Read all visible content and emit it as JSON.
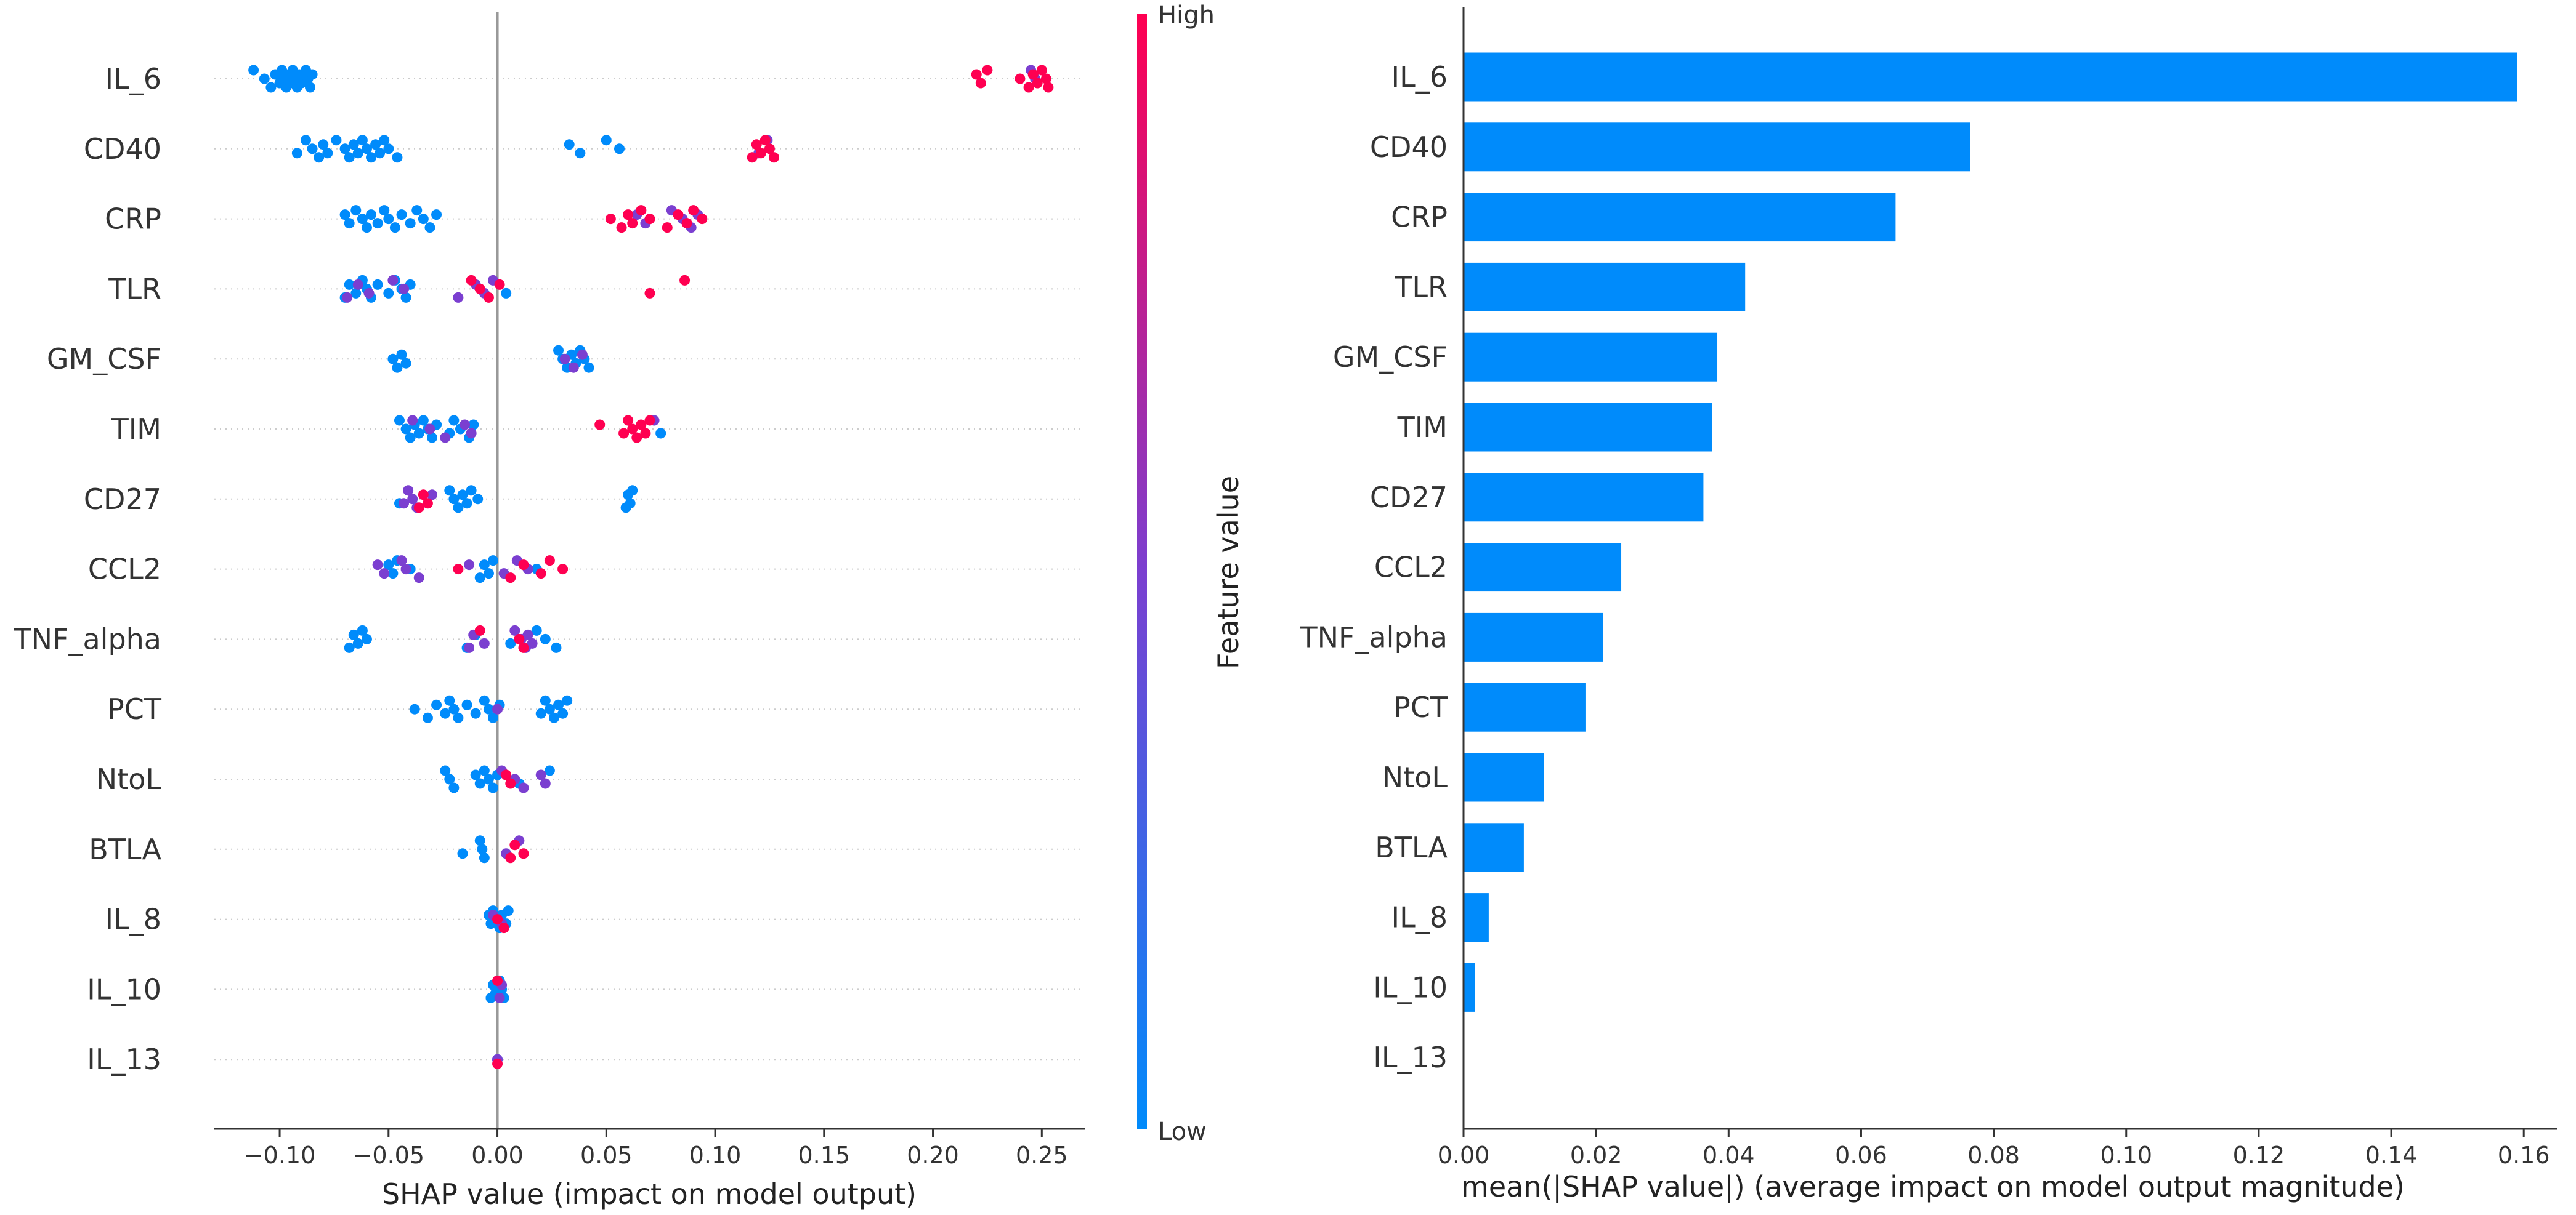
{
  "chart_data": [
    {
      "type": "scatter",
      "subtype": "shap-beeswarm",
      "xlabel": "SHAP value (impact on model output)",
      "xlim": [
        -0.13,
        0.27
      ],
      "xticks": [
        "−0.10",
        "−0.05",
        "0.00",
        "0.05",
        "0.10",
        "0.15",
        "0.20",
        "0.25"
      ],
      "xtick_values": [
        -0.1,
        -0.05,
        0.0,
        0.05,
        0.1,
        0.15,
        0.2,
        0.25
      ],
      "colorbar": {
        "label": "Feature value",
        "high": "High",
        "low": "Low",
        "low_color": "#008bfb",
        "high_color": "#ff0051"
      },
      "features": [
        "IL_6",
        "CD40",
        "CRP",
        "TLR",
        "GM_CSF",
        "TIM",
        "CD27",
        "CCL2",
        "TNF_alpha",
        "PCT",
        "NtoL",
        "BTLA",
        "IL_8",
        "IL_10",
        "IL_13"
      ],
      "points": [
        {
          "feature": "IL_6",
          "low_x": [
            -0.112,
            -0.107,
            -0.104,
            -0.102,
            -0.1,
            -0.099,
            -0.098,
            -0.097,
            -0.096,
            -0.095,
            -0.094,
            -0.093,
            -0.092,
            -0.091,
            -0.09,
            -0.088,
            -0.087,
            -0.086,
            -0.085
          ],
          "high_x": [
            0.22,
            0.222,
            0.225,
            0.24,
            0.244,
            0.246,
            0.248,
            0.25,
            0.252,
            0.253
          ],
          "mid_x": [
            0.245,
            0.247
          ]
        },
        {
          "feature": "CD40",
          "low_x": [
            -0.092,
            -0.088,
            -0.085,
            -0.082,
            -0.08,
            -0.078,
            -0.074,
            -0.07,
            -0.068,
            -0.066,
            -0.064,
            -0.062,
            -0.06,
            -0.058,
            -0.056,
            -0.054,
            -0.052,
            -0.05,
            -0.046,
            0.033,
            0.038,
            0.05,
            0.056
          ],
          "high_x": [
            0.117,
            0.119,
            0.121,
            0.123,
            0.125,
            0.127
          ],
          "mid_x": [
            0.12,
            0.124
          ]
        },
        {
          "feature": "CRP",
          "low_x": [
            -0.07,
            -0.068,
            -0.065,
            -0.062,
            -0.06,
            -0.058,
            -0.055,
            -0.052,
            -0.05,
            -0.047,
            -0.044,
            -0.04,
            -0.037,
            -0.034,
            -0.031,
            -0.028
          ],
          "high_x": [
            0.052,
            0.057,
            0.06,
            0.062,
            0.066,
            0.07,
            0.078,
            0.083,
            0.087,
            0.09,
            0.094
          ],
          "mid_x": [
            0.064,
            0.068,
            0.08,
            0.085,
            0.089,
            0.092
          ]
        },
        {
          "feature": "TLR",
          "low_x": [
            -0.07,
            -0.068,
            -0.065,
            -0.062,
            -0.06,
            -0.058,
            -0.055,
            -0.05,
            -0.047,
            -0.044,
            -0.042,
            -0.04,
            0.004
          ],
          "high_x": [
            -0.012,
            -0.008,
            -0.004,
            0.001,
            0.07,
            0.086
          ],
          "mid_x": [
            -0.069,
            -0.064,
            -0.059,
            -0.048,
            -0.043,
            -0.018,
            -0.01,
            -0.006,
            -0.002
          ]
        },
        {
          "feature": "GM_CSF",
          "low_x": [
            -0.048,
            -0.046,
            -0.044,
            -0.042,
            0.028,
            0.03,
            0.032,
            0.034,
            0.036,
            0.038,
            0.04,
            0.042
          ],
          "high_x": [],
          "mid_x": [
            0.031,
            0.035,
            0.039
          ]
        },
        {
          "feature": "TIM",
          "low_x": [
            -0.045,
            -0.042,
            -0.04,
            -0.038,
            -0.036,
            -0.034,
            -0.032,
            -0.03,
            -0.028,
            -0.022,
            -0.02,
            -0.017,
            -0.013,
            -0.011,
            0.075
          ],
          "high_x": [
            0.047,
            0.058,
            0.06,
            0.062,
            0.064,
            0.066,
            0.068,
            0.07
          ],
          "mid_x": [
            -0.039,
            -0.031,
            -0.024,
            -0.015,
            -0.012,
            0.072
          ]
        },
        {
          "feature": "CD27",
          "low_x": [
            -0.045,
            -0.022,
            -0.02,
            -0.018,
            -0.016,
            -0.014,
            -0.012,
            -0.009,
            0.059,
            0.06,
            0.061,
            0.062
          ],
          "high_x": [
            -0.036,
            -0.034,
            -0.032
          ],
          "mid_x": [
            -0.043,
            -0.041,
            -0.039,
            -0.037,
            -0.03
          ]
        },
        {
          "feature": "CCL2",
          "low_x": [
            -0.05,
            -0.048,
            -0.046,
            -0.04,
            -0.008,
            -0.006,
            -0.004,
            -0.002,
            0.018
          ],
          "high_x": [
            -0.018,
            0.006,
            0.012,
            0.02,
            0.024,
            0.03
          ],
          "mid_x": [
            -0.055,
            -0.052,
            -0.044,
            -0.042,
            -0.036,
            -0.013,
            0.003,
            0.009,
            0.014
          ]
        },
        {
          "feature": "TNF_alpha",
          "low_x": [
            -0.068,
            -0.066,
            -0.064,
            -0.062,
            -0.06,
            -0.014,
            -0.01,
            0.006,
            0.018,
            0.022,
            0.027
          ],
          "high_x": [
            -0.008,
            0.01,
            0.012
          ],
          "mid_x": [
            -0.013,
            -0.011,
            -0.006,
            0.008,
            0.011,
            0.013,
            0.014,
            0.016
          ]
        },
        {
          "feature": "PCT",
          "low_x": [
            -0.038,
            -0.032,
            -0.028,
            -0.024,
            -0.022,
            -0.02,
            -0.018,
            -0.014,
            -0.01,
            -0.006,
            -0.004,
            -0.002,
            0.001,
            0.02,
            0.022,
            0.024,
            0.026,
            0.028,
            0.03,
            0.032
          ],
          "high_x": [],
          "mid_x": [
            0.0
          ]
        },
        {
          "feature": "NtoL",
          "low_x": [
            -0.024,
            -0.022,
            -0.02,
            -0.01,
            -0.008,
            -0.006,
            -0.004,
            -0.002,
            0.0,
            0.01,
            0.024
          ],
          "high_x": [
            0.004,
            0.006
          ],
          "mid_x": [
            0.002,
            0.008,
            0.012,
            0.02,
            0.022
          ]
        },
        {
          "feature": "BTLA",
          "low_x": [
            -0.016,
            -0.008,
            -0.007,
            -0.006
          ],
          "high_x": [
            0.006,
            0.008,
            0.012
          ],
          "mid_x": [
            0.004,
            0.01
          ]
        },
        {
          "feature": "IL_8",
          "low_x": [
            -0.004,
            -0.003,
            -0.002,
            -0.001,
            0.001,
            0.002,
            0.004,
            0.005
          ],
          "high_x": [
            0.0,
            0.003
          ],
          "mid_x": [
            -0.002,
            0.002
          ]
        },
        {
          "feature": "IL_10",
          "low_x": [
            -0.003,
            -0.002,
            -0.001,
            0.001,
            0.002,
            0.003
          ],
          "high_x": [
            0.0
          ],
          "mid_x": [
            0.001,
            0.002
          ]
        },
        {
          "feature": "IL_13",
          "low_x": [
            0.0
          ],
          "high_x": [
            0.0
          ],
          "mid_x": [
            0.0
          ]
        }
      ]
    },
    {
      "type": "bar",
      "orientation": "horizontal",
      "xlabel": "mean(|SHAP value|) (average impact on model output magnitude)",
      "xlim": [
        0.0,
        0.165
      ],
      "xticks": [
        "0.00",
        "0.02",
        "0.04",
        "0.06",
        "0.08",
        "0.10",
        "0.12",
        "0.14",
        "0.16"
      ],
      "xtick_values": [
        0.0,
        0.02,
        0.04,
        0.06,
        0.08,
        0.1,
        0.12,
        0.14,
        0.16
      ],
      "bar_color": "#008bfb",
      "categories": [
        "IL_6",
        "CD40",
        "CRP",
        "TLR",
        "GM_CSF",
        "TIM",
        "CD27",
        "CCL2",
        "TNF_alpha",
        "PCT",
        "NtoL",
        "BTLA",
        "IL_8",
        "IL_10",
        "IL_13"
      ],
      "values": [
        0.159,
        0.0765,
        0.0652,
        0.0425,
        0.0383,
        0.0375,
        0.0362,
        0.0238,
        0.0211,
        0.0184,
        0.0121,
        0.0091,
        0.0038,
        0.0017,
        0.0
      ]
    }
  ]
}
